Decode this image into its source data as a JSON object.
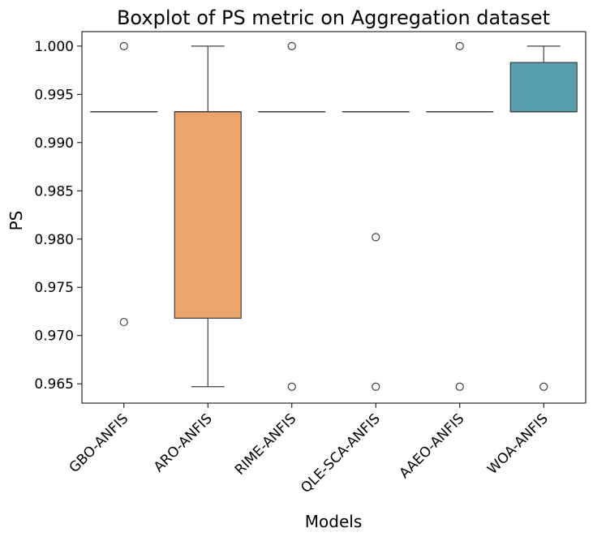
{
  "chart_data": {
    "type": "boxplot",
    "title": "Boxplot of PS metric on Aggregation dataset",
    "xlabel": "Models",
    "ylabel": "PS",
    "ylim": [
      0.963,
      1.0015
    ],
    "yticks": [
      0.965,
      0.97,
      0.975,
      0.98,
      0.985,
      0.99,
      0.995,
      1.0
    ],
    "ytick_labels": [
      "0.965",
      "0.970",
      "0.975",
      "0.980",
      "0.985",
      "0.990",
      "0.995",
      "1.000"
    ],
    "categories": [
      "GBO-ANFIS",
      "ARO-ANFIS",
      "RIME-ANFIS",
      "QLE-SCA-ANFIS",
      "AAEO-ANFIS",
      "WOA-ANFIS"
    ],
    "boxes": [
      {
        "name": "GBO-ANFIS",
        "color": "#5b9bd5",
        "whisker_low": 0.9932,
        "q1": 0.9932,
        "median": 0.9932,
        "q3": 0.9932,
        "whisker_high": 0.9932,
        "outliers": [
          1.0,
          0.9714
        ]
      },
      {
        "name": "ARO-ANFIS",
        "color": "#eba56c",
        "whisker_low": 0.9647,
        "q1": 0.9718,
        "median": 0.9932,
        "q3": 0.9932,
        "whisker_high": 1.0,
        "outliers": []
      },
      {
        "name": "RIME-ANFIS",
        "color": "#8fbc8f",
        "whisker_low": 0.9932,
        "q1": 0.9932,
        "median": 0.9932,
        "q3": 0.9932,
        "whisker_high": 0.9932,
        "outliers": [
          1.0,
          0.9647
        ]
      },
      {
        "name": "QLE-SCA-ANFIS",
        "color": "#8fbc8f",
        "whisker_low": 0.9932,
        "q1": 0.9932,
        "median": 0.9932,
        "q3": 0.9932,
        "whisker_high": 0.9932,
        "outliers": [
          0.9802,
          0.9647
        ]
      },
      {
        "name": "AAEO-ANFIS",
        "color": "#8fbc8f",
        "whisker_low": 0.9932,
        "q1": 0.9932,
        "median": 0.9932,
        "q3": 0.9932,
        "whisker_high": 0.9932,
        "outliers": [
          1.0,
          0.9647
        ]
      },
      {
        "name": "WOA-ANFIS",
        "color": "#579eae",
        "whisker_low": 0.9932,
        "q1": 0.9932,
        "median": 0.9932,
        "q3": 0.9983,
        "whisker_high": 1.0,
        "outliers": [
          0.9647
        ]
      }
    ],
    "grid": false,
    "legend": "none"
  }
}
